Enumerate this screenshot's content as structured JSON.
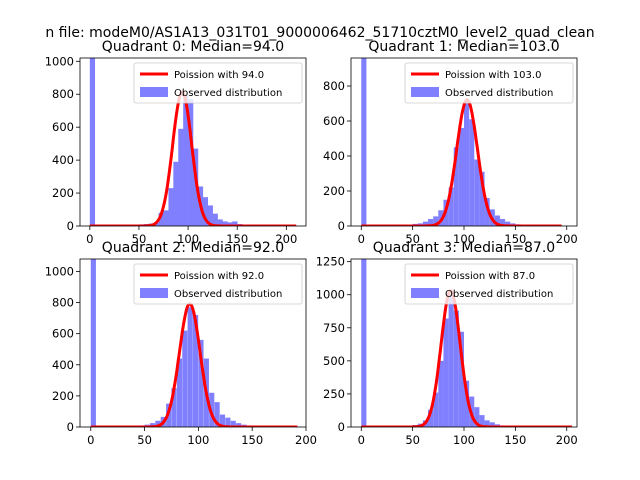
{
  "figure": {
    "suptitle": "n file: modeM0/AS1A13_031T01_9000006462_51710cztM0_level2_quad_clean"
  },
  "chart_data": [
    {
      "type": "bar",
      "quadrant": 0,
      "title": "Quadrant 0: Median=94.0",
      "xlim": [
        -10,
        220
      ],
      "ylim": [
        0,
        1020
      ],
      "xticks": [
        0,
        50,
        100,
        150,
        200
      ],
      "yticks": [
        0,
        200,
        400,
        600,
        800,
        1000
      ],
      "zero_bin_count": 1020,
      "median": 94.0,
      "legend": {
        "position": "upper right",
        "entries": [
          "Poission with 94.0",
          "Observed distribution"
        ]
      },
      "series": [
        {
          "name": "Poission with 94.0",
          "kind": "line",
          "color": "#ff0000",
          "mean": 94.0,
          "x_start": 0,
          "x_end": 210
        },
        {
          "name": "Observed distribution",
          "kind": "hist",
          "color": "#8080ff",
          "bin_width": 5.3,
          "bins": [
            [
              0,
              1020
            ],
            [
              32,
              5
            ],
            [
              40,
              8
            ],
            [
              45,
              8
            ],
            [
              50,
              10
            ],
            [
              55,
              12
            ],
            [
              60,
              15
            ],
            [
              65,
              18
            ],
            [
              70,
              80
            ],
            [
              75,
              95
            ],
            [
              80,
              230
            ],
            [
              85,
              390
            ],
            [
              90,
              590
            ],
            [
              95,
              790
            ],
            [
              100,
              770
            ],
            [
              105,
              470
            ],
            [
              110,
              240
            ],
            [
              115,
              175
            ],
            [
              120,
              125
            ],
            [
              125,
              75
            ],
            [
              130,
              40
            ],
            [
              135,
              28
            ],
            [
              140,
              22
            ],
            [
              145,
              28
            ],
            [
              150,
              12
            ],
            [
              155,
              6
            ],
            [
              160,
              4
            ],
            [
              170,
              2
            ]
          ]
        }
      ]
    },
    {
      "type": "bar",
      "quadrant": 1,
      "title": "Quadrant 1: Median=103.0",
      "xlim": [
        -10,
        210
      ],
      "ylim": [
        0,
        960
      ],
      "xticks": [
        0,
        50,
        100,
        150,
        200
      ],
      "yticks": [
        0,
        200,
        400,
        600,
        800
      ],
      "zero_bin_count": 960,
      "median": 103.0,
      "legend": {
        "position": "upper right",
        "entries": [
          "Poission with 103.0",
          "Observed distribution"
        ]
      },
      "series": [
        {
          "name": "Poission with 103.0",
          "kind": "line",
          "color": "#ff0000",
          "mean": 103.0,
          "x_start": 0,
          "x_end": 195
        },
        {
          "name": "Observed distribution",
          "kind": "hist",
          "color": "#8080ff",
          "bin_width": 5.0,
          "bins": [
            [
              0,
              960
            ],
            [
              40,
              5
            ],
            [
              45,
              8
            ],
            [
              50,
              12
            ],
            [
              55,
              15
            ],
            [
              60,
              25
            ],
            [
              65,
              40
            ],
            [
              70,
              55
            ],
            [
              75,
              90
            ],
            [
              80,
              150
            ],
            [
              85,
              220
            ],
            [
              90,
              450
            ],
            [
              95,
              560
            ],
            [
              100,
              700
            ],
            [
              105,
              610
            ],
            [
              110,
              380
            ],
            [
              115,
              310
            ],
            [
              120,
              160
            ],
            [
              125,
              95
            ],
            [
              130,
              60
            ],
            [
              135,
              40
            ],
            [
              140,
              25
            ],
            [
              145,
              15
            ],
            [
              150,
              10
            ],
            [
              155,
              6
            ],
            [
              160,
              4
            ]
          ]
        }
      ]
    },
    {
      "type": "bar",
      "quadrant": 2,
      "title": "Quadrant 2: Median=92.0",
      "xlim": [
        -10,
        200
      ],
      "ylim": [
        0,
        1080
      ],
      "xticks": [
        0,
        50,
        100,
        150,
        200
      ],
      "yticks": [
        0,
        200,
        400,
        600,
        800,
        1000
      ],
      "zero_bin_count": 1080,
      "median": 92.0,
      "legend": {
        "position": "upper right",
        "entries": [
          "Poission with 92.0",
          "Observed distribution"
        ]
      },
      "series": [
        {
          "name": "Poission with 92.0",
          "kind": "line",
          "color": "#ff0000",
          "mean": 92.0,
          "x_start": 0,
          "x_end": 192
        },
        {
          "name": "Observed distribution",
          "kind": "hist",
          "color": "#8080ff",
          "bin_width": 4.8,
          "bins": [
            [
              0,
              1080
            ],
            [
              30,
              5
            ],
            [
              40,
              8
            ],
            [
              45,
              10
            ],
            [
              50,
              15
            ],
            [
              55,
              25
            ],
            [
              60,
              40
            ],
            [
              65,
              65
            ],
            [
              70,
              150
            ],
            [
              75,
              250
            ],
            [
              80,
              440
            ],
            [
              85,
              620
            ],
            [
              90,
              770
            ],
            [
              95,
              720
            ],
            [
              100,
              560
            ],
            [
              105,
              440
            ],
            [
              110,
              220
            ],
            [
              115,
              160
            ],
            [
              120,
              80
            ],
            [
              125,
              60
            ],
            [
              130,
              40
            ],
            [
              135,
              25
            ],
            [
              140,
              15
            ],
            [
              145,
              10
            ],
            [
              150,
              6
            ],
            [
              155,
              3
            ]
          ]
        }
      ]
    },
    {
      "type": "bar",
      "quadrant": 3,
      "title": "Quadrant 3: Median=87.0",
      "xlim": [
        -10,
        210
      ],
      "ylim": [
        0,
        1270
      ],
      "xticks": [
        0,
        50,
        100,
        150,
        200
      ],
      "yticks": [
        0,
        250,
        500,
        750,
        1000,
        1250
      ],
      "zero_bin_count": 1270,
      "median": 87.0,
      "legend": {
        "position": "upper right",
        "entries": [
          "Poission with 87.0",
          "Observed distribution"
        ]
      },
      "series": [
        {
          "name": "Poission with 87.0",
          "kind": "line",
          "color": "#ff0000",
          "mean": 87.0,
          "x_start": 0,
          "x_end": 205
        },
        {
          "name": "Observed distribution",
          "kind": "hist",
          "color": "#8080ff",
          "bin_width": 5.0,
          "bins": [
            [
              0,
              1270
            ],
            [
              40,
              5
            ],
            [
              45,
              8
            ],
            [
              50,
              15
            ],
            [
              55,
              25
            ],
            [
              60,
              50
            ],
            [
              65,
              130
            ],
            [
              70,
              260
            ],
            [
              75,
              500
            ],
            [
              80,
              820
            ],
            [
              85,
              1000
            ],
            [
              90,
              880
            ],
            [
              95,
              720
            ],
            [
              100,
              350
            ],
            [
              105,
              230
            ],
            [
              110,
              150
            ],
            [
              115,
              90
            ],
            [
              120,
              50
            ],
            [
              125,
              35
            ],
            [
              130,
              20
            ],
            [
              135,
              12
            ],
            [
              140,
              8
            ],
            [
              145,
              5
            ]
          ]
        }
      ]
    }
  ]
}
